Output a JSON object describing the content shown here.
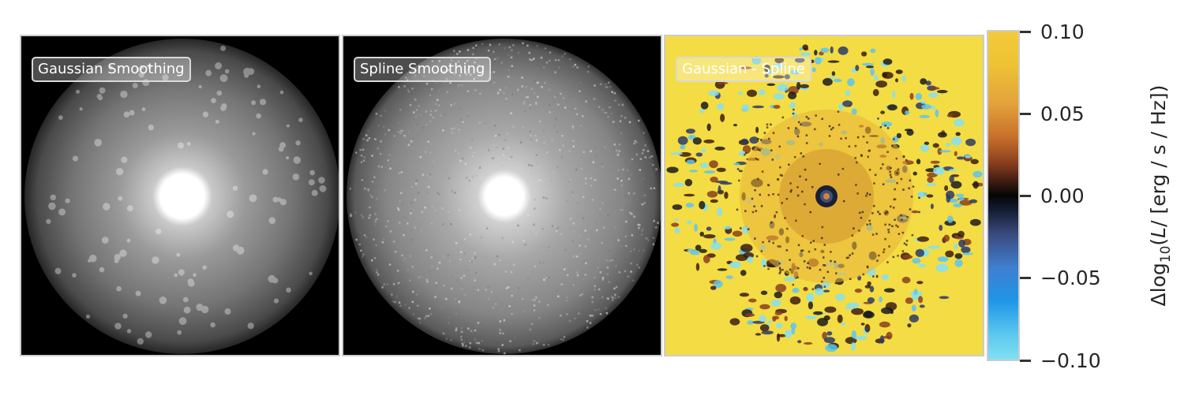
{
  "chart_data": [
    {
      "type": "heatmap",
      "panel_label": "Gaussian Smoothing",
      "colormap": "greys",
      "background": "#000000",
      "description": "smooth bright core with diffuse halo"
    },
    {
      "type": "heatmap",
      "panel_label": "Spline Smoothing",
      "colormap": "greys",
      "background": "#000000",
      "description": "bright core with grainy halo"
    },
    {
      "type": "heatmap",
      "panel_label": "Gaussian - Spline",
      "colormap": "diverging",
      "background": "#f4dc44",
      "description": "difference map"
    }
  ],
  "colorbar": {
    "label_prefix": "Δlog",
    "label_sub": "10",
    "label_var": "L",
    "label_units": "/ [erg / s / Hz])",
    "ticks": [
      0.1,
      0.05,
      0.0,
      -0.05,
      -0.1
    ],
    "tick_labels": [
      "0.10",
      "0.05",
      "0.00",
      "−0.05",
      "−0.10"
    ],
    "range": [
      -0.1,
      0.1
    ]
  }
}
